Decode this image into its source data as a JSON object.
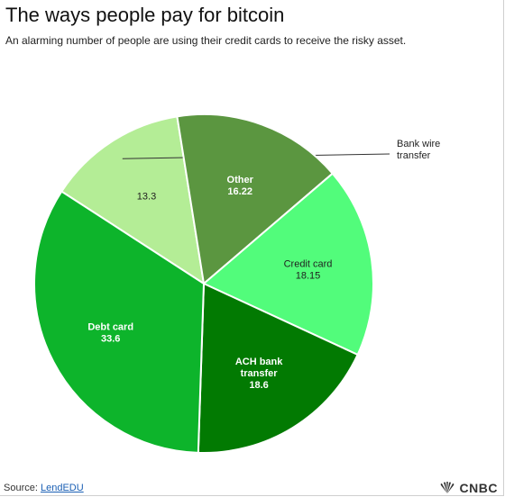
{
  "header": {
    "title": "The ways people pay for bitcoin",
    "subtitle": "An alarming number of people are using their credit cards to receive the risky asset."
  },
  "chart_data": {
    "type": "pie",
    "title": "The ways people pay for bitcoin",
    "subtitle": "An alarming number of people are using their credit cards to receive the risky asset.",
    "slices": [
      {
        "name": "Bank wire transfer",
        "value": 13.3,
        "label_lines": [],
        "value_label": "13.3",
        "color": "#b4ed96",
        "callout_lines": [
          "Bank wire",
          "transfer"
        ]
      },
      {
        "name": "Other",
        "value": 16.22,
        "label_lines": [
          "Other"
        ],
        "value_label": "16.22",
        "color": "#5b9640"
      },
      {
        "name": "Credit card",
        "value": 18.15,
        "label_lines": [
          "Credit card"
        ],
        "value_label": "18.15",
        "color": "#52fc7b"
      },
      {
        "name": "ACH bank transfer",
        "value": 18.6,
        "label_lines": [
          "ACH bank",
          "transfer"
        ],
        "value_label": "18.6",
        "color": "#027a02"
      },
      {
        "name": "Debt card",
        "value": 33.6,
        "label_lines": [
          "Debt card"
        ],
        "value_label": "33.6",
        "color": "#0db42b"
      }
    ]
  },
  "footer": {
    "source_prefix": "Source: ",
    "source_link": "LendEDU",
    "logo_text": "CNBC"
  }
}
